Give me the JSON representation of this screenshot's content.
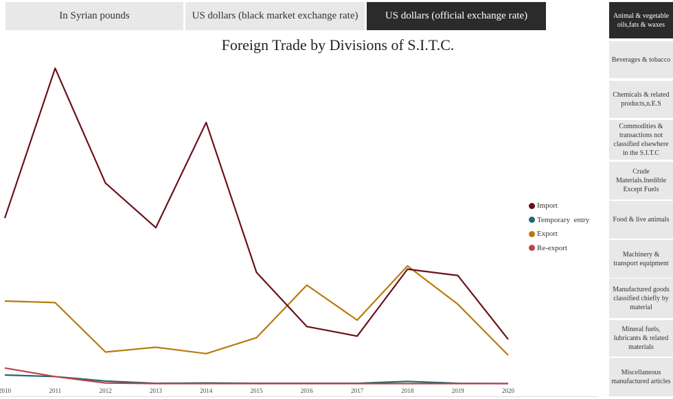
{
  "tabs": [
    {
      "label": "In Syrian pounds",
      "active": false
    },
    {
      "label": "US dollars (black market exchange rate)",
      "active": false
    },
    {
      "label": "US dollars (official exchange rate)",
      "active": true
    }
  ],
  "side_menu": [
    {
      "label": "Animal & vegetable oils,fats & waxes",
      "active": true
    },
    {
      "label": "Beverages & tobacco",
      "active": false
    },
    {
      "label": "Chemicals & related products,n.E.S",
      "active": false
    },
    {
      "label": "Commodities & transactions not classified elsewhere in the S.I.T.C",
      "active": false
    },
    {
      "label": "Crude Materials.Inedible Except Fuels",
      "active": false
    },
    {
      "label": "Food & live animals",
      "active": false
    },
    {
      "label": "Machinery & transport equipment",
      "active": false
    },
    {
      "label": "Manufactured goods classified chiefly by material",
      "active": false
    },
    {
      "label": "Mineral fuels, lubricants & related materials",
      "active": false
    },
    {
      "label": "Miscellaneous manufactured articles",
      "active": false
    }
  ],
  "chart_data": {
    "type": "line",
    "title": "Foreign Trade by Divisions of S.I.T.C.",
    "xlabel": "",
    "ylabel": "",
    "x": [
      2010,
      2011,
      2012,
      2013,
      2014,
      2015,
      2016,
      2017,
      2018,
      2019,
      2020
    ],
    "ylim": [
      0,
      100
    ],
    "grid": false,
    "legend_position": "right",
    "series": [
      {
        "name": "Import",
        "color": "#6b0f1a",
        "values": [
          52,
          99,
          63,
          49,
          82,
          35,
          18,
          15,
          36,
          34,
          14
        ]
      },
      {
        "name": "Temporary  entry",
        "color": "#1c6b6b",
        "values": [
          2.8,
          2.3,
          0.9,
          0.2,
          0.3,
          0.2,
          0.2,
          0.2,
          0.8,
          0.2,
          0.1
        ]
      },
      {
        "name": "Export",
        "color": "#b87a0a",
        "values": [
          26,
          25.5,
          10,
          11.5,
          9.5,
          14.5,
          31,
          20,
          37,
          25,
          9
        ]
      },
      {
        "name": "Re-export",
        "color": "#c0404a",
        "values": [
          5,
          2.3,
          0.3,
          0.1,
          0.1,
          0.1,
          0.1,
          0.1,
          0.1,
          0.1,
          0.1
        ]
      }
    ]
  }
}
